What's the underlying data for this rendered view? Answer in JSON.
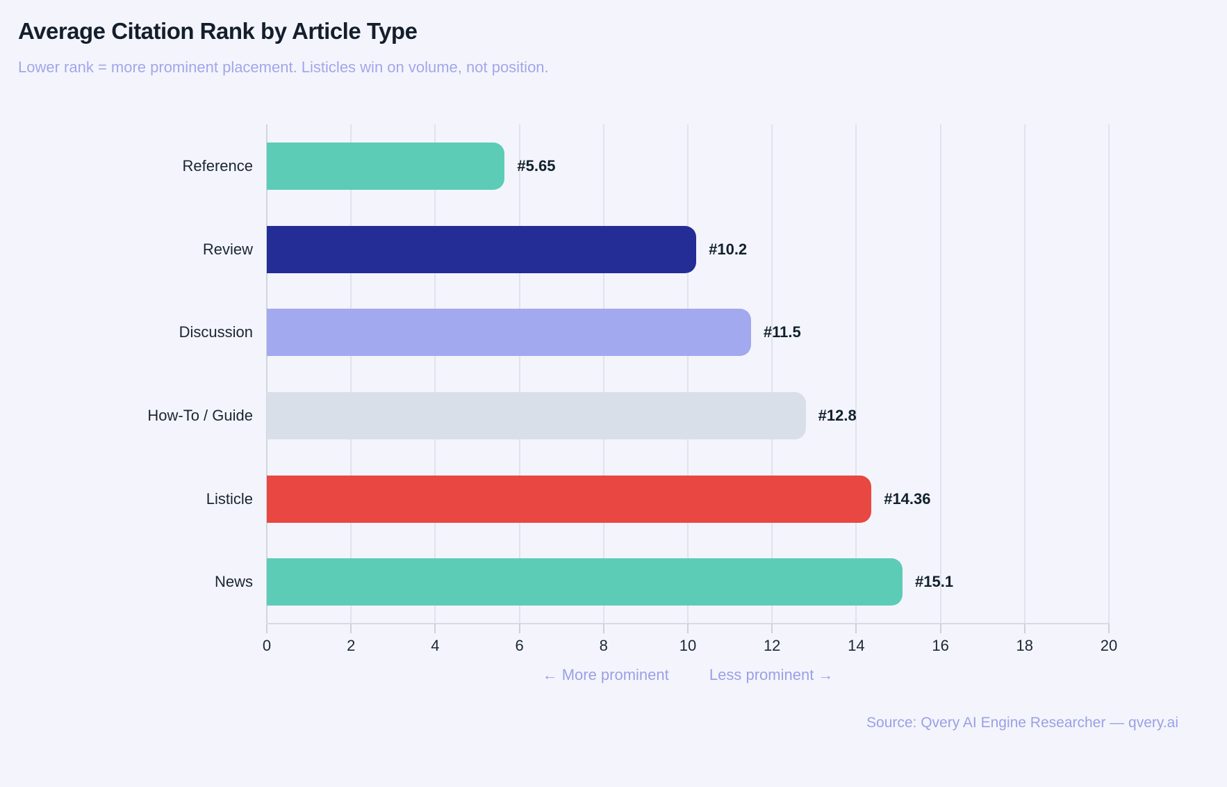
{
  "header": {
    "title": "Average Citation Rank by Article Type",
    "subtitle": "Lower rank = more prominent placement. Listicles win on volume, not position."
  },
  "footer": {
    "left_hint": "← More prominent",
    "right_hint": "Less prominent →",
    "source": "Source: Qvery AI Engine Researcher — qvery.ai"
  },
  "colors": {
    "background": "#f4f5fc",
    "title_text": "#141e2c",
    "accent_purple": "#9aa0e5",
    "label_text": "#1a2530",
    "gridline": "#e0e3ed",
    "zero_line": "#ccd8d7",
    "axis_line": "#d6dbe2"
  },
  "chart_data": {
    "type": "bar",
    "orientation": "horizontal",
    "title": "Average Citation Rank by Article Type",
    "subtitle": "Lower rank = more prominent placement. Listicles win on volume, not position.",
    "categories": [
      "Reference",
      "Review",
      "Discussion",
      "How-To / Guide",
      "Listicle",
      "News"
    ],
    "values": [
      5.65,
      10.2,
      11.5,
      12.8,
      14.36,
      15.1
    ],
    "value_labels": [
      "#5.65",
      "#10.2",
      "#11.5",
      "#12.8",
      "#14.36",
      "#15.1"
    ],
    "bar_colors": [
      "#5cccb7",
      "#242d96",
      "#a3a9ef",
      "#d9dfe9",
      "#e94741",
      "#5cccb7"
    ],
    "xlabel": "",
    "ylabel": "",
    "xlim": [
      0,
      20
    ],
    "xticks": [
      0,
      2,
      4,
      6,
      8,
      10,
      12,
      14,
      16,
      18,
      20
    ],
    "grid": true,
    "legend": false,
    "annotations": [
      "← More prominent",
      "Less prominent →"
    ]
  }
}
